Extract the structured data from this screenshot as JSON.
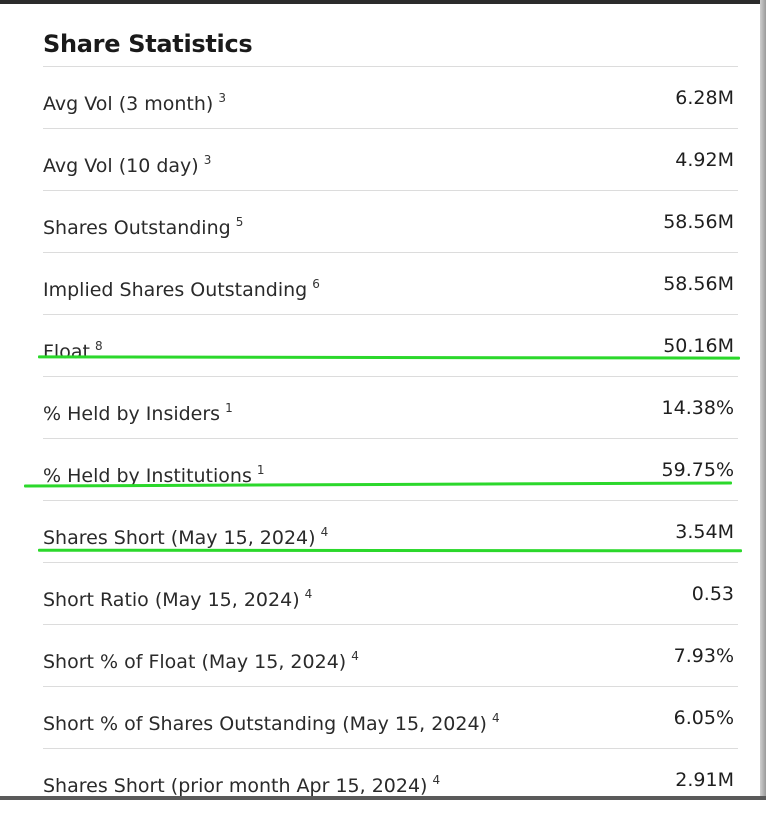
{
  "section": {
    "title": "Share Statistics"
  },
  "rows": [
    {
      "label": "Avg Vol (3 month)",
      "footnote": "3",
      "value": "6.28M"
    },
    {
      "label": "Avg Vol (10 day)",
      "footnote": "3",
      "value": "4.92M"
    },
    {
      "label": "Shares Outstanding",
      "footnote": "5",
      "value": "58.56M"
    },
    {
      "label": "Implied Shares Outstanding",
      "footnote": "6",
      "value": "58.56M"
    },
    {
      "label": "Float",
      "footnote": "8",
      "value": "50.16M"
    },
    {
      "label": "% Held by Insiders",
      "footnote": "1",
      "value": "14.38%"
    },
    {
      "label": "% Held by Institutions",
      "footnote": "1",
      "value": "59.75%"
    },
    {
      "label": "Shares Short (May 15, 2024)",
      "footnote": "4",
      "value": "3.54M"
    },
    {
      "label": "Short Ratio (May 15, 2024)",
      "footnote": "4",
      "value": "0.53"
    },
    {
      "label": "Short % of Float (May 15, 2024)",
      "footnote": "4",
      "value": "7.93%"
    },
    {
      "label": "Short % of Shares Outstanding (May 15, 2024)",
      "footnote": "4",
      "value": "6.05%"
    },
    {
      "label": "Shares Short (prior month Apr 15, 2024)",
      "footnote": "4",
      "value": "2.91M"
    }
  ],
  "highlight_color": "#2bd82b"
}
